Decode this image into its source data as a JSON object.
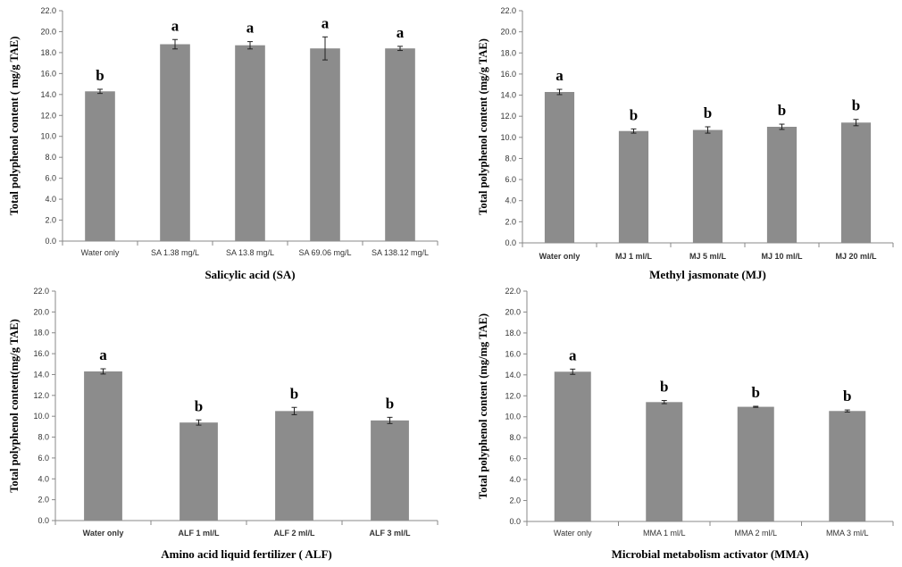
{
  "chart_data": [
    {
      "type": "bar",
      "xlabel": "Salicylic acid (SA)",
      "ylabel": "Total polyphenol content ( mg/g TAE)",
      "categories": [
        "Water only",
        "SA 1.38 mg/L",
        "SA 13.8 mg/L",
        "SA 69.06 mg/L",
        "SA 138.12 mg/L"
      ],
      "values": [
        14.3,
        18.8,
        18.7,
        18.4,
        18.4
      ],
      "errors": [
        0.2,
        0.45,
        0.35,
        1.1,
        0.2
      ],
      "significance": [
        "b",
        "a",
        "a",
        "a",
        "a"
      ],
      "yticks": [
        "0.0",
        "2.0",
        "4.0",
        "6.0",
        "8.0",
        "10.0",
        "12.0",
        "14.0",
        "16.0",
        "18.0",
        "20.0",
        "22.0"
      ],
      "ylim": [
        0,
        22
      ],
      "bold_categories": false,
      "color": "#8c8c8c"
    },
    {
      "type": "bar",
      "xlabel": "Methyl jasmonate (MJ)",
      "ylabel": "Total polyphenol content (mg/g TAE)",
      "categories": [
        "Water only",
        "MJ 1 ml/L",
        "MJ 5 ml/L",
        "MJ 10 ml/L",
        "MJ 20 ml/L"
      ],
      "values": [
        14.3,
        10.6,
        10.7,
        11.0,
        11.4
      ],
      "errors": [
        0.25,
        0.2,
        0.3,
        0.25,
        0.3
      ],
      "significance": [
        "a",
        "b",
        "b",
        "b",
        "b"
      ],
      "yticks": [
        "0.0",
        "2.0",
        "4.0",
        "6.0",
        "8.0",
        "10.0",
        "12.0",
        "14.0",
        "16.0",
        "18.0",
        "20.0",
        "22.0"
      ],
      "ylim": [
        0,
        22
      ],
      "bold_categories": true,
      "color": "#8c8c8c"
    },
    {
      "type": "bar",
      "xlabel": "Amino acid liquid fertilizer ( ALF)",
      "ylabel": "Total polyphenol content(mg/g TAE)",
      "categories": [
        "Water only",
        "ALF 1 ml/L",
        "ALF 2 ml/L",
        "ALF 3 ml/L"
      ],
      "values": [
        14.3,
        9.4,
        10.5,
        9.6
      ],
      "errors": [
        0.25,
        0.25,
        0.35,
        0.3
      ],
      "significance": [
        "a",
        "b",
        "b",
        "b"
      ],
      "yticks": [
        "0.0",
        "2.0",
        "4.0",
        "6.0",
        "8.0",
        "10.0",
        "12.0",
        "14.0",
        "16.0",
        "18.0",
        "20.0",
        "22.0"
      ],
      "ylim": [
        0,
        22
      ],
      "bold_categories": true,
      "color": "#8c8c8c"
    },
    {
      "type": "bar",
      "xlabel": "Microbial metabolism activator (MMA)",
      "ylabel": "Total polyphenol content (mg/mg TAE)",
      "categories": [
        "Water only",
        "MMA 1 ml/L",
        "MMA 2 ml/L",
        "MMA 3 ml/L"
      ],
      "values": [
        14.3,
        11.4,
        10.95,
        10.55
      ],
      "errors": [
        0.25,
        0.15,
        0.05,
        0.1
      ],
      "significance": [
        "a",
        "b",
        "b",
        "b"
      ],
      "yticks": [
        "0.0",
        "2.0",
        "4.0",
        "6.0",
        "8.0",
        "10.0",
        "12.0",
        "14.0",
        "16.0",
        "18.0",
        "20.0",
        "22.0"
      ],
      "ylim": [
        0,
        22
      ],
      "bold_categories": false,
      "color": "#8c8c8c"
    }
  ]
}
